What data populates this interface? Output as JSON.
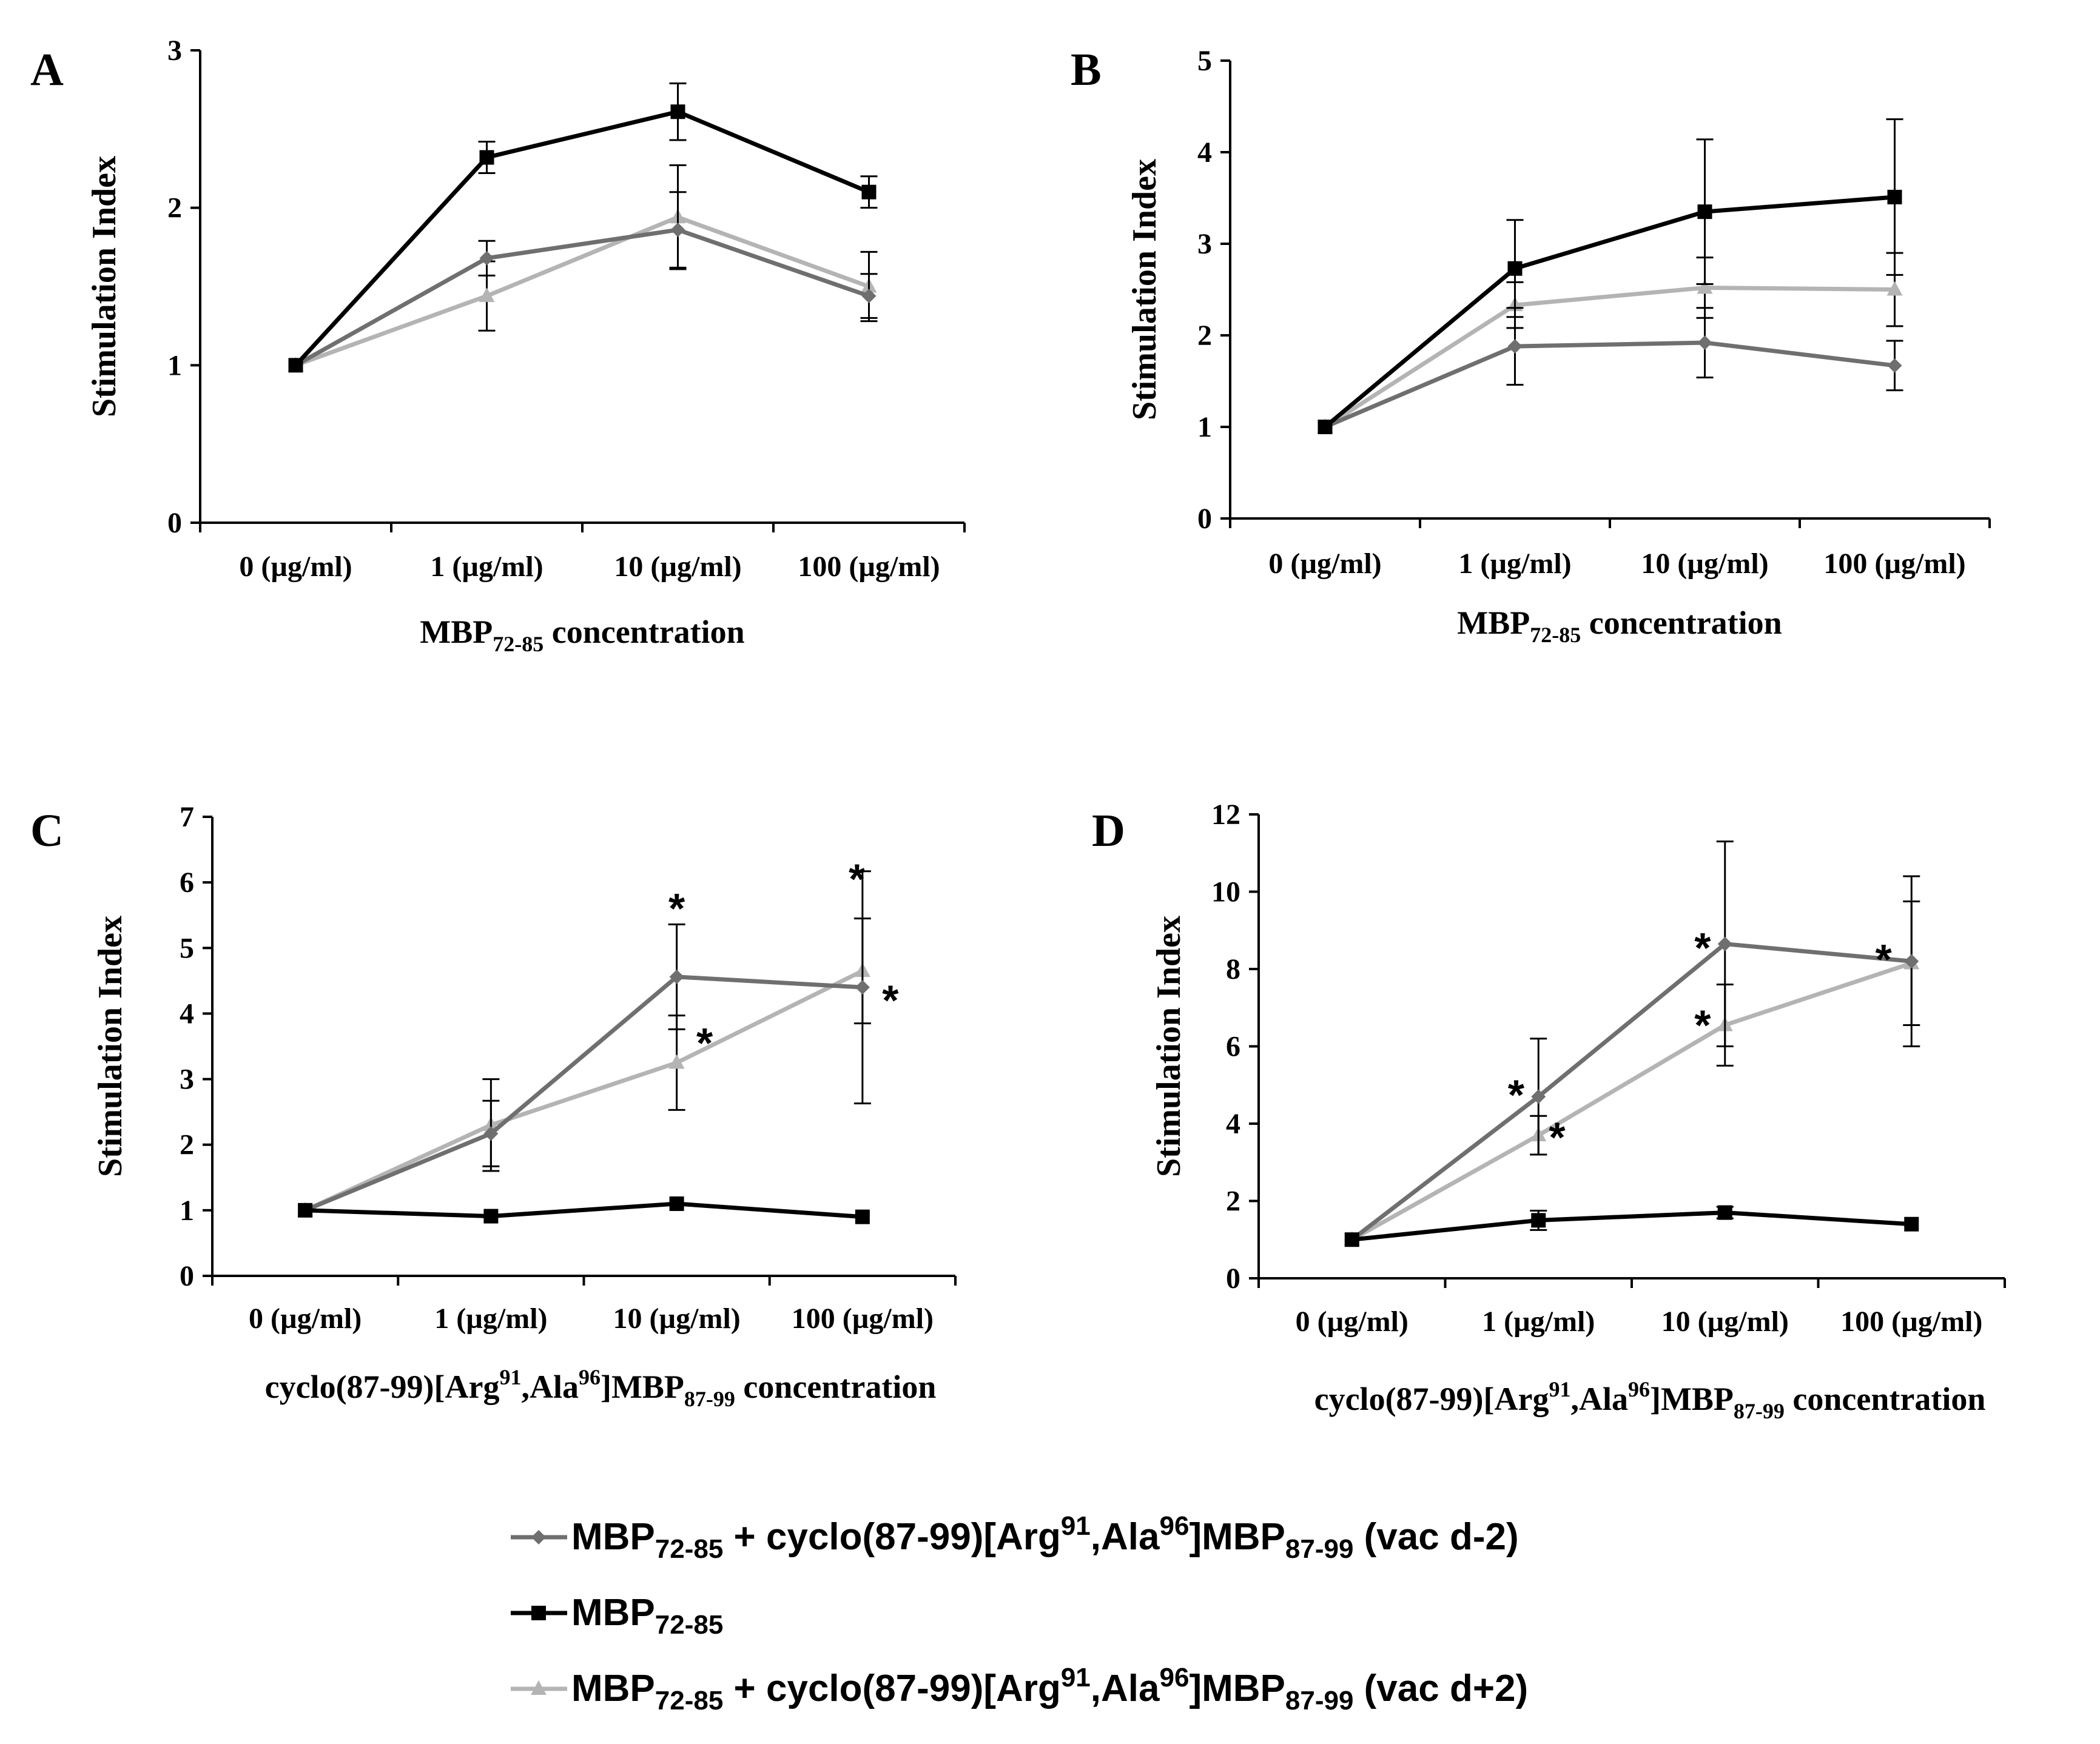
{
  "series_styles": [
    {
      "name": "MBP72-85 + cyclo(87-99)[Arg91,Ala96]MBP87-99 (vac d-2)",
      "color": "#6f6f6f",
      "marker": "diamond"
    },
    {
      "name": "MBP72-85",
      "color": "#000000",
      "marker": "square"
    },
    {
      "name": "MBP72-85 + cyclo(87-99)[Arg91,Ala96]MBP87-99 (vac d+2)",
      "color": "#b4b4b4",
      "marker": "triangle"
    }
  ],
  "legend": {
    "items": [
      {
        "prefix": "MBP",
        "sub1": "72-85",
        "mid": " + cyclo(87-99)[Arg",
        "sup1": "91",
        "mid2": ",Ala",
        "sup2": "96",
        "mid3": "]MBP",
        "sub2": "87-99",
        "suffix": " (vac d-2)"
      },
      {
        "prefix": "MBP",
        "sub1": "72-85"
      },
      {
        "prefix": "MBP",
        "sub1": "72-85",
        "mid": " + cyclo(87-99)[Arg",
        "sup1": "91",
        "mid2": ",Ala",
        "sup2": "96",
        "mid3": "]MBP",
        "sub2": "87-99",
        "suffix": " (vac d+2)"
      }
    ]
  },
  "chart_data": [
    {
      "panel": "A",
      "type": "line",
      "ylabel": "Stimulation Index",
      "xlabel": {
        "pre": "MBP",
        "sub": "72-85",
        "post": " concentration"
      },
      "categories": [
        "0 (µg/ml)",
        "1 (µg/ml)",
        "10 (µg/ml)",
        "100 (µg/ml)"
      ],
      "ylim": [
        0,
        3
      ],
      "yticks": [
        0,
        1,
        2,
        3
      ],
      "series": [
        {
          "name": "vac d-2",
          "values": [
            1.0,
            1.68,
            1.86,
            1.44
          ],
          "errors": [
            0,
            0.11,
            0.24,
            0.14
          ]
        },
        {
          "name": "MBP72-85",
          "values": [
            1.0,
            2.32,
            2.61,
            2.1
          ],
          "errors": [
            0,
            0.1,
            0.18,
            0.1
          ]
        },
        {
          "name": "vac d+2",
          "values": [
            1.0,
            1.44,
            1.94,
            1.5
          ],
          "errors": [
            0,
            0.22,
            0.33,
            0.22
          ]
        }
      ],
      "stars": []
    },
    {
      "panel": "B",
      "type": "line",
      "ylabel": "Stimulation Index",
      "xlabel": {
        "pre": "MBP",
        "sub": "72-85",
        "post": " concentration"
      },
      "categories": [
        "0 (µg/ml)",
        "1 (µg/ml)",
        "10 (µg/ml)",
        "100 (µg/ml)"
      ],
      "ylim": [
        0,
        5
      ],
      "yticks": [
        0,
        1,
        2,
        3,
        4,
        5
      ],
      "series": [
        {
          "name": "vac d-2",
          "values": [
            1.0,
            1.88,
            1.92,
            1.67
          ],
          "errors": [
            0,
            0.42,
            0.38,
            0.27
          ]
        },
        {
          "name": "MBP72-85",
          "values": [
            1.0,
            2.73,
            3.35,
            3.51
          ],
          "errors": [
            0,
            0.53,
            0.79,
            0.85
          ]
        },
        {
          "name": "vac d+2",
          "values": [
            1.0,
            2.33,
            2.52,
            2.5
          ],
          "errors": [
            0,
            0.25,
            0.33,
            0.4
          ]
        }
      ],
      "stars": []
    },
    {
      "panel": "C",
      "type": "line",
      "ylabel": "Stimulation Index",
      "xlabel": {
        "pre": "cyclo(87-99)[Arg",
        "sup1": "91",
        "mid": ",Ala",
        "sup2": "96",
        "mid2": "]MBP",
        "sub": "87-99",
        "post": " concentration"
      },
      "categories": [
        "0 (µg/ml)",
        "1 (µg/ml)",
        "10 (µg/ml)",
        "100 (µg/ml)"
      ],
      "ylim": [
        0,
        7
      ],
      "yticks": [
        0,
        1,
        2,
        3,
        4,
        5,
        6,
        7
      ],
      "series": [
        {
          "name": "vac d-2",
          "values": [
            1.0,
            2.17,
            4.56,
            4.4
          ],
          "errors": [
            0,
            0.5,
            0.8,
            1.77
          ]
        },
        {
          "name": "MBP72-85",
          "values": [
            1.0,
            0.91,
            1.1,
            0.9
          ],
          "errors": [
            0,
            0,
            0,
            0
          ]
        },
        {
          "name": "vac d+2",
          "values": [
            1.0,
            2.3,
            3.25,
            4.65
          ],
          "errors": [
            0,
            0.7,
            0.72,
            0.8
          ]
        }
      ],
      "stars": [
        {
          "text": "*",
          "category": 2,
          "value": 5.75
        },
        {
          "text": "*",
          "category": 2.15,
          "value": 3.7
        },
        {
          "text": "*",
          "category": 2.97,
          "value": 6.2
        },
        {
          "text": "*",
          "category": 3.15,
          "value": 4.35
        }
      ]
    },
    {
      "panel": "D",
      "type": "line",
      "ylabel": "Stimulation Index",
      "xlabel": {
        "pre": "cyclo(87-99)[Arg",
        "sup1": "91",
        "mid": ",Ala",
        "sup2": "96",
        "mid2": "]MBP",
        "sub": "87-99",
        "post": " concentration"
      },
      "categories": [
        "0 (µg/ml)",
        "1 (µg/ml)",
        "10 (µg/ml)",
        "100 (µg/ml)"
      ],
      "ylim": [
        0,
        12
      ],
      "yticks": [
        0,
        2,
        4,
        6,
        8,
        10,
        12
      ],
      "series": [
        {
          "name": "vac d-2",
          "values": [
            1.0,
            4.7,
            8.65,
            8.2
          ],
          "errors": [
            0,
            1.5,
            2.65,
            2.2
          ]
        },
        {
          "name": "MBP72-85",
          "values": [
            1.0,
            1.5,
            1.7,
            1.4
          ],
          "errors": [
            0,
            0.25,
            0.15,
            0
          ]
        },
        {
          "name": "vac d+2",
          "values": [
            1.0,
            3.7,
            6.55,
            8.15
          ],
          "errors": [
            0,
            0.5,
            1.05,
            1.6
          ]
        }
      ],
      "stars": [
        {
          "text": "*",
          "category": 0.88,
          "value": 5.0
        },
        {
          "text": "*",
          "category": 1.1,
          "value": 3.9
        },
        {
          "text": "*",
          "category": 1.88,
          "value": 8.8
        },
        {
          "text": "*",
          "category": 1.88,
          "value": 6.8
        },
        {
          "text": "*",
          "category": 2.85,
          "value": 8.5
        }
      ]
    }
  ]
}
